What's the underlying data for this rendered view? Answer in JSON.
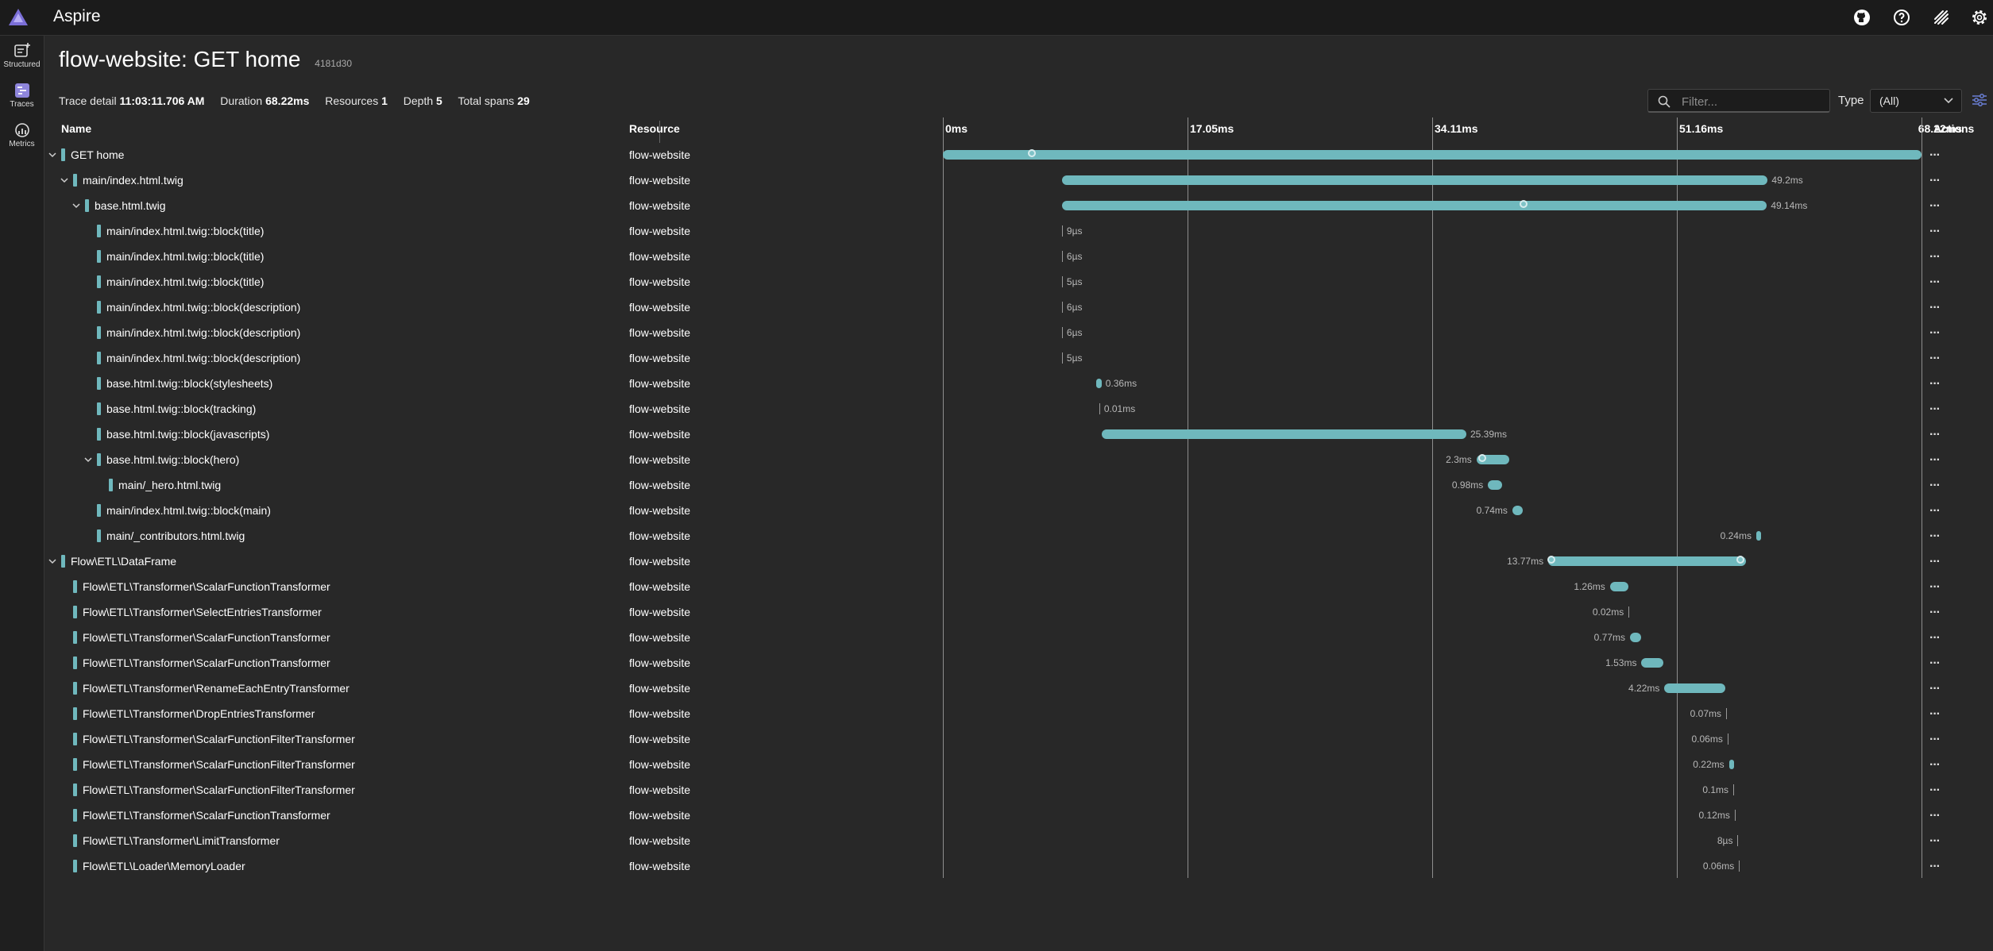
{
  "app": {
    "name": "Aspire"
  },
  "nav": [
    {
      "label": "Structured",
      "icon": "structured-logs-icon"
    },
    {
      "label": "Traces",
      "icon": "traces-icon"
    },
    {
      "label": "Metrics",
      "icon": "metrics-icon"
    }
  ],
  "page": {
    "title": "flow-website: GET home",
    "trace_id": "4181d30"
  },
  "summary": {
    "trace_detail_label": "Trace detail",
    "trace_detail": "11:03:11.706 AM",
    "duration_label": "Duration",
    "duration": "68.22ms",
    "resources_label": "Resources",
    "resources": "1",
    "depth_label": "Depth",
    "depth": "5",
    "total_spans_label": "Total spans",
    "total_spans": "29"
  },
  "filter": {
    "placeholder": "Filter..."
  },
  "type": {
    "label": "Type",
    "value": "(All)"
  },
  "columns": {
    "name": "Name",
    "resource": "Resource",
    "actions": "Actions"
  },
  "timeline": {
    "total_ms": 68.22,
    "ticks": [
      "0ms",
      "17.05ms",
      "34.11ms",
      "51.16ms",
      "68.22ms"
    ]
  },
  "colors": {
    "span": "#6fb8bd",
    "background": "#282828"
  },
  "spans": [
    {
      "name": "GET home",
      "resource": "flow-website",
      "depth": 0,
      "expandable": true,
      "start_ms": 0,
      "duration_label": "",
      "dots_ms": [
        6.2
      ]
    },
    {
      "name": "main/index.html.twig",
      "resource": "flow-website",
      "depth": 1,
      "expandable": true,
      "start_ms": 8.3,
      "duration_label": "49.2ms",
      "dots_ms": []
    },
    {
      "name": "base.html.twig",
      "resource": "flow-website",
      "depth": 2,
      "expandable": true,
      "start_ms": 8.3,
      "duration_label": "49.14ms",
      "dots_ms": [
        40.5
      ]
    },
    {
      "name": "main/index.html.twig::block(title)",
      "resource": "flow-website",
      "depth": 3,
      "expandable": false,
      "start_ms": 8.3,
      "duration_label": "9µs",
      "dots_ms": []
    },
    {
      "name": "main/index.html.twig::block(title)",
      "resource": "flow-website",
      "depth": 3,
      "expandable": false,
      "start_ms": 8.3,
      "duration_label": "6µs",
      "dots_ms": []
    },
    {
      "name": "main/index.html.twig::block(title)",
      "resource": "flow-website",
      "depth": 3,
      "expandable": false,
      "start_ms": 8.3,
      "duration_label": "5µs",
      "dots_ms": []
    },
    {
      "name": "main/index.html.twig::block(description)",
      "resource": "flow-website",
      "depth": 3,
      "expandable": false,
      "start_ms": 8.3,
      "duration_label": "6µs",
      "dots_ms": []
    },
    {
      "name": "main/index.html.twig::block(description)",
      "resource": "flow-website",
      "depth": 3,
      "expandable": false,
      "start_ms": 8.3,
      "duration_label": "6µs",
      "dots_ms": []
    },
    {
      "name": "main/index.html.twig::block(description)",
      "resource": "flow-website",
      "depth": 3,
      "expandable": false,
      "start_ms": 8.3,
      "duration_label": "5µs",
      "dots_ms": []
    },
    {
      "name": "base.html.twig::block(stylesheets)",
      "resource": "flow-website",
      "depth": 3,
      "expandable": false,
      "start_ms": 10.7,
      "duration_label": "0.36ms",
      "dots_ms": []
    },
    {
      "name": "base.html.twig::block(tracking)",
      "resource": "flow-website",
      "depth": 3,
      "expandable": false,
      "start_ms": 10.9,
      "duration_label": "0.01ms",
      "dots_ms": []
    },
    {
      "name": "base.html.twig::block(javascripts)",
      "resource": "flow-website",
      "depth": 3,
      "expandable": false,
      "start_ms": 11.1,
      "duration_label": "25.39ms",
      "dots_ms": []
    },
    {
      "name": "base.html.twig::block(hero)",
      "resource": "flow-website",
      "depth": 3,
      "expandable": true,
      "start_ms": 37.2,
      "duration_label": "2.3ms",
      "dots_ms": [
        37.6
      ]
    },
    {
      "name": "main/_hero.html.twig",
      "resource": "flow-website",
      "depth": 4,
      "expandable": false,
      "start_ms": 38.0,
      "duration_label": "0.98ms",
      "dots_ms": []
    },
    {
      "name": "main/index.html.twig::block(main)",
      "resource": "flow-website",
      "depth": 3,
      "expandable": false,
      "start_ms": 39.7,
      "duration_label": "0.74ms",
      "dots_ms": []
    },
    {
      "name": "main/_contributors.html.twig",
      "resource": "flow-website",
      "depth": 3,
      "expandable": false,
      "start_ms": 56.7,
      "duration_label": "0.24ms",
      "dots_ms": []
    },
    {
      "name": "Flow\\ETL\\DataFrame",
      "resource": "flow-website",
      "depth": 0,
      "expandable": true,
      "start_ms": 42.2,
      "duration_label": "13.77ms",
      "dots_ms": [
        42.4,
        55.6
      ]
    },
    {
      "name": "Flow\\ETL\\Transformer\\ScalarFunctionTransformer",
      "resource": "flow-website",
      "depth": 1,
      "expandable": false,
      "start_ms": 46.5,
      "duration_label": "1.26ms",
      "dots_ms": []
    },
    {
      "name": "Flow\\ETL\\Transformer\\SelectEntriesTransformer",
      "resource": "flow-website",
      "depth": 1,
      "expandable": false,
      "start_ms": 47.8,
      "duration_label": "0.02ms",
      "dots_ms": []
    },
    {
      "name": "Flow\\ETL\\Transformer\\ScalarFunctionTransformer",
      "resource": "flow-website",
      "depth": 1,
      "expandable": false,
      "start_ms": 47.9,
      "duration_label": "0.77ms",
      "dots_ms": []
    },
    {
      "name": "Flow\\ETL\\Transformer\\ScalarFunctionTransformer",
      "resource": "flow-website",
      "depth": 1,
      "expandable": false,
      "start_ms": 48.7,
      "duration_label": "1.53ms",
      "dots_ms": []
    },
    {
      "name": "Flow\\ETL\\Transformer\\RenameEachEntryTransformer",
      "resource": "flow-website",
      "depth": 1,
      "expandable": false,
      "start_ms": 50.3,
      "duration_label": "4.22ms",
      "dots_ms": []
    },
    {
      "name": "Flow\\ETL\\Transformer\\DropEntriesTransformer",
      "resource": "flow-website",
      "depth": 1,
      "expandable": false,
      "start_ms": 54.6,
      "duration_label": "0.07ms",
      "dots_ms": []
    },
    {
      "name": "Flow\\ETL\\Transformer\\ScalarFunctionFilterTransformer",
      "resource": "flow-website",
      "depth": 1,
      "expandable": false,
      "start_ms": 54.7,
      "duration_label": "0.06ms",
      "dots_ms": []
    },
    {
      "name": "Flow\\ETL\\Transformer\\ScalarFunctionFilterTransformer",
      "resource": "flow-website",
      "depth": 1,
      "expandable": false,
      "start_ms": 54.8,
      "duration_label": "0.22ms",
      "dots_ms": []
    },
    {
      "name": "Flow\\ETL\\Transformer\\ScalarFunctionFilterTransformer",
      "resource": "flow-website",
      "depth": 1,
      "expandable": false,
      "start_ms": 55.1,
      "duration_label": "0.1ms",
      "dots_ms": []
    },
    {
      "name": "Flow\\ETL\\Transformer\\ScalarFunctionTransformer",
      "resource": "flow-website",
      "depth": 1,
      "expandable": false,
      "start_ms": 55.2,
      "duration_label": "0.12ms",
      "dots_ms": []
    },
    {
      "name": "Flow\\ETL\\Transformer\\LimitTransformer",
      "resource": "flow-website",
      "depth": 1,
      "expandable": false,
      "start_ms": 55.4,
      "duration_label": "8µs",
      "dots_ms": []
    },
    {
      "name": "Flow\\ETL\\Loader\\MemoryLoader",
      "resource": "flow-website",
      "depth": 1,
      "expandable": false,
      "start_ms": 55.5,
      "duration_label": "0.06ms",
      "dots_ms": []
    }
  ]
}
